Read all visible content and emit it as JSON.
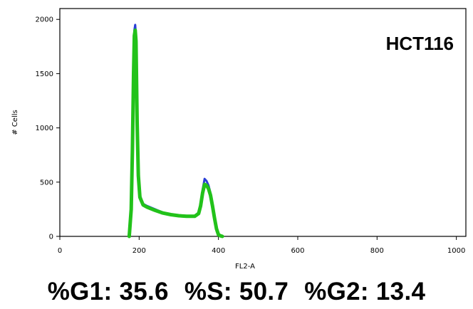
{
  "chart_data": {
    "type": "line",
    "ylabel": "# Cells",
    "xlabel": "FL2-A",
    "sample_label": "HCT116",
    "xlim": [
      0,
      1024
    ],
    "ylim": [
      0,
      2100
    ],
    "xticks": [
      0,
      200,
      400,
      600,
      800,
      1000
    ],
    "yticks": [
      0,
      500,
      1000,
      1500,
      2000
    ],
    "series": [
      {
        "color": "#2a3fd6",
        "x": [
          175,
          180,
          183,
          186,
          188,
          190,
          192,
          195,
          198,
          202,
          210,
          220,
          240,
          260,
          280,
          300,
          320,
          340,
          350,
          355,
          360,
          365,
          370,
          375,
          380,
          385,
          390,
          395,
          400,
          405,
          410
        ],
        "y": [
          0,
          300,
          900,
          1600,
          1900,
          1950,
          1850,
          1100,
          600,
          380,
          300,
          280,
          250,
          220,
          200,
          190,
          185,
          190,
          220,
          300,
          430,
          530,
          510,
          470,
          400,
          290,
          180,
          80,
          20,
          5,
          0
        ]
      },
      {
        "color": "#22c21a",
        "x": [
          175,
          180,
          183,
          186,
          188,
          190,
          192,
          195,
          198,
          202,
          210,
          220,
          240,
          260,
          280,
          300,
          320,
          340,
          350,
          355,
          360,
          365,
          370,
          375,
          380,
          385,
          390,
          395,
          400,
          405,
          410
        ],
        "y": [
          0,
          250,
          800,
          1500,
          1850,
          1900,
          1800,
          1050,
          560,
          360,
          290,
          270,
          240,
          215,
          200,
          190,
          185,
          185,
          210,
          280,
          400,
          480,
          470,
          440,
          380,
          280,
          170,
          70,
          15,
          5,
          0
        ]
      }
    ]
  },
  "stats": {
    "g1": "%G1: 35.6",
    "s": "%S: 50.7",
    "g2": "%G2: 13.4"
  }
}
